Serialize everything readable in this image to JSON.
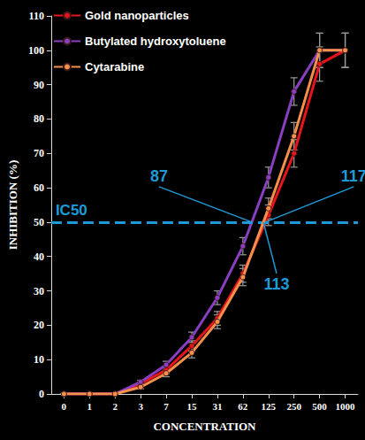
{
  "chart_data": {
    "type": "line",
    "x_label": "CONCENTRATION",
    "y_label": "INHIBITION (%)",
    "categories": [
      "0",
      "1",
      "2",
      "3",
      "7",
      "15",
      "31",
      "62",
      "125",
      "250",
      "500",
      "1000"
    ],
    "series": [
      {
        "name": "Gold nanoparticles",
        "color": "#e8141b",
        "marker": "circle",
        "values": [
          0,
          0,
          0,
          3,
          7,
          14,
          22,
          35,
          52,
          70,
          96,
          100
        ],
        "errors": [
          0,
          0,
          0,
          0.5,
          1,
          1.5,
          2,
          2.5,
          3,
          4,
          5,
          5
        ]
      },
      {
        "name": "Butylated hydroxytoluene",
        "color": "#8a3fc2",
        "marker": "circle",
        "values": [
          0,
          0,
          0,
          3.5,
          8.5,
          16.5,
          28,
          43,
          63,
          88,
          100,
          100
        ],
        "errors": [
          0,
          0,
          0,
          0.5,
          1,
          1.5,
          2,
          2.5,
          3,
          4,
          5,
          5
        ]
      },
      {
        "name": "Cytarabine",
        "color": "#f4904a",
        "marker": "circle",
        "values": [
          0,
          0,
          0,
          2,
          6,
          12,
          21,
          34,
          54,
          75,
          100,
          100
        ],
        "errors": [
          0,
          0,
          0,
          0.5,
          1,
          1.5,
          2,
          2.5,
          3,
          4,
          5,
          5
        ]
      }
    ],
    "ylim": [
      0,
      110
    ],
    "yticks": [
      0,
      10,
      20,
      30,
      40,
      50,
      60,
      70,
      80,
      90,
      100,
      110
    ],
    "grid": false,
    "legend": "upper left",
    "reference_line": {
      "y": 50,
      "label": "IC50",
      "color": "#1e9bd7",
      "line_style": "dashed"
    },
    "annotations": [
      {
        "text": "87",
        "series": "Butylated hydroxytoluene"
      },
      {
        "text": "117",
        "series": "Gold nanoparticles"
      },
      {
        "text": "113",
        "series": "Cytarabine"
      }
    ]
  }
}
